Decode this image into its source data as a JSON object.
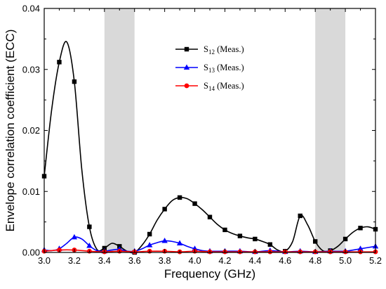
{
  "chart_data": {
    "type": "line",
    "title": "",
    "xlabel": "Frequency (GHz)",
    "ylabel": "Envelope correlation coefficient (ECC)",
    "xlim": [
      3.0,
      5.2
    ],
    "ylim": [
      0.0,
      0.04
    ],
    "xticks": [
      "3.0",
      "3.2",
      "3.4",
      "3.6",
      "3.8",
      "4.0",
      "4.2",
      "4.4",
      "4.6",
      "4.8",
      "5.0",
      "5.2"
    ],
    "yticks": [
      "0.00",
      "0.01",
      "0.02",
      "0.03",
      "0.04"
    ],
    "grid": false,
    "legend_position": "top-center",
    "shaded_bands": [
      {
        "x0": 3.4,
        "x1": 3.6,
        "color": "#d9d9d9"
      },
      {
        "x0": 4.8,
        "x1": 5.0,
        "color": "#d9d9d9"
      }
    ],
    "series": [
      {
        "name": "S12 (Meas.)",
        "legend_main": "S",
        "legend_sub": "12",
        "legend_suffix": " (Meas.)",
        "color": "#000000",
        "marker": "square",
        "x": [
          3.0,
          3.05,
          3.1,
          3.15,
          3.2,
          3.25,
          3.3,
          3.35,
          3.4,
          3.45,
          3.5,
          3.55,
          3.6,
          3.65,
          3.7,
          3.75,
          3.8,
          3.85,
          3.9,
          3.95,
          4.0,
          4.05,
          4.1,
          4.15,
          4.2,
          4.25,
          4.3,
          4.35,
          4.4,
          4.45,
          4.5,
          4.55,
          4.6,
          4.65,
          4.7,
          4.75,
          4.8,
          4.85,
          4.9,
          4.95,
          5.0,
          5.05,
          5.1,
          5.15,
          5.2
        ],
        "y": [
          0.0125,
          0.0235,
          0.0312,
          0.0345,
          0.028,
          0.0135,
          0.0042,
          0.0005,
          0.0007,
          0.0015,
          0.001,
          0.0002,
          0.0,
          0.0012,
          0.003,
          0.0053,
          0.0071,
          0.0085,
          0.009,
          0.0088,
          0.008,
          0.007,
          0.0058,
          0.0046,
          0.0037,
          0.0031,
          0.0027,
          0.0024,
          0.0022,
          0.0018,
          0.0013,
          0.0004,
          0.0002,
          0.0018,
          0.006,
          0.0045,
          0.0018,
          0.0003,
          0.0003,
          0.001,
          0.0022,
          0.0033,
          0.004,
          0.0042,
          0.0038
        ],
        "marker_x": [
          3.0,
          3.1,
          3.2,
          3.3,
          3.4,
          3.5,
          3.6,
          3.7,
          3.8,
          3.9,
          4.0,
          4.1,
          4.2,
          4.3,
          4.4,
          4.5,
          4.6,
          4.7,
          4.8,
          4.9,
          5.0,
          5.1,
          5.2
        ]
      },
      {
        "name": "S13 (Meas.)",
        "legend_main": "S",
        "legend_sub": "13",
        "legend_suffix": " (Meas.)",
        "color": "#0000ff",
        "marker": "triangle",
        "x": [
          3.0,
          3.05,
          3.1,
          3.15,
          3.2,
          3.25,
          3.3,
          3.35,
          3.4,
          3.45,
          3.5,
          3.55,
          3.6,
          3.65,
          3.7,
          3.75,
          3.8,
          3.85,
          3.9,
          3.95,
          4.0,
          4.05,
          4.1,
          4.2,
          4.3,
          4.4,
          4.5,
          4.6,
          4.7,
          4.8,
          4.9,
          5.0,
          5.1,
          5.2
        ],
        "y": [
          0.0004,
          0.0003,
          0.0006,
          0.0015,
          0.0025,
          0.0022,
          0.0011,
          0.0003,
          0.0002,
          0.0004,
          0.0005,
          0.0002,
          0.0002,
          0.0006,
          0.0012,
          0.0016,
          0.0019,
          0.0018,
          0.0015,
          0.001,
          0.0006,
          0.0003,
          0.0002,
          0.0002,
          0.0002,
          0.0001,
          0.0003,
          0.0001,
          0.0002,
          0.0001,
          0.0002,
          0.0002,
          0.0006,
          0.001
        ],
        "marker_x": [
          3.0,
          3.1,
          3.2,
          3.3,
          3.4,
          3.5,
          3.6,
          3.7,
          3.8,
          3.9,
          4.0,
          4.1,
          4.2,
          4.3,
          4.4,
          4.5,
          4.6,
          4.7,
          4.8,
          4.9,
          5.0,
          5.1,
          5.2
        ]
      },
      {
        "name": "S14 (Meas.)",
        "legend_main": "S",
        "legend_sub": "14",
        "legend_suffix": " (Meas.)",
        "color": "#ff0000",
        "marker": "circle",
        "x": [
          3.0,
          3.1,
          3.2,
          3.3,
          3.4,
          3.5,
          3.6,
          3.7,
          3.8,
          3.9,
          4.0,
          4.1,
          4.2,
          4.3,
          4.4,
          4.5,
          4.6,
          4.7,
          4.8,
          4.9,
          5.0,
          5.1,
          5.2
        ],
        "y": [
          0.0002,
          0.0004,
          0.0004,
          0.0002,
          0.0001,
          0.0002,
          0.0001,
          0.0002,
          0.0002,
          0.0001,
          0.0002,
          0.0001,
          0.0001,
          0.0001,
          0.0001,
          0.0001,
          0.0001,
          0.0001,
          0.0001,
          0.0001,
          0.0001,
          0.0001,
          0.0001
        ],
        "marker_x": [
          3.0,
          3.1,
          3.2,
          3.3,
          3.4,
          3.5,
          3.6,
          3.7,
          3.8,
          3.9,
          4.0,
          4.1,
          4.2,
          4.3,
          4.4,
          4.5,
          4.6,
          4.7,
          4.8,
          4.9,
          5.0,
          5.1,
          5.2
        ]
      }
    ]
  }
}
